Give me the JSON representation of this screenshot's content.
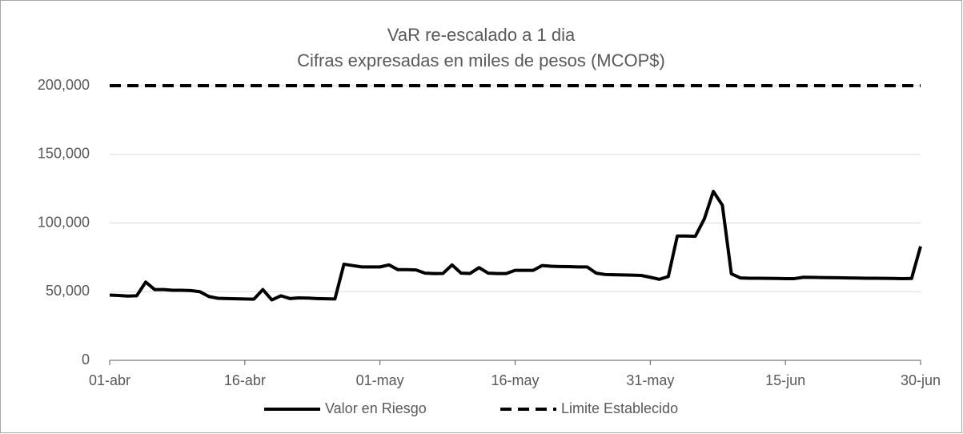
{
  "chart_data": {
    "type": "line",
    "title": "VaR re-escalado a 1 dia",
    "subtitle": "Cifras expresadas en miles de pesos (MCOP$)",
    "categories": [
      "01-abr",
      "02-abr",
      "03-abr",
      "04-abr",
      "05-abr",
      "06-abr",
      "07-abr",
      "08-abr",
      "09-abr",
      "10-abr",
      "11-abr",
      "12-abr",
      "13-abr",
      "14-abr",
      "15-abr",
      "16-abr",
      "17-abr",
      "18-abr",
      "19-abr",
      "20-abr",
      "21-abr",
      "22-abr",
      "23-abr",
      "24-abr",
      "25-abr",
      "26-abr",
      "27-abr",
      "28-abr",
      "29-abr",
      "30-abr",
      "01-may",
      "02-may",
      "03-may",
      "04-may",
      "05-may",
      "06-may",
      "07-may",
      "08-may",
      "09-may",
      "10-may",
      "11-may",
      "12-may",
      "13-may",
      "14-may",
      "15-may",
      "16-may",
      "17-may",
      "18-may",
      "19-may",
      "20-may",
      "21-may",
      "22-may",
      "23-may",
      "24-may",
      "25-may",
      "26-may",
      "27-may",
      "28-may",
      "29-may",
      "30-may",
      "31-may",
      "01-jun",
      "02-jun",
      "03-jun",
      "04-jun",
      "05-jun",
      "06-jun",
      "07-jun",
      "08-jun",
      "09-jun",
      "10-jun",
      "11-jun",
      "12-jun",
      "13-jun",
      "14-jun",
      "15-jun",
      "16-jun",
      "17-jun",
      "18-jun",
      "19-jun",
      "20-jun",
      "21-jun",
      "22-jun",
      "23-jun",
      "24-jun",
      "25-jun",
      "26-jun",
      "27-jun",
      "28-jun",
      "29-jun",
      "30-jun"
    ],
    "series": [
      {
        "name": "Valor en Riesgo",
        "color": "#000000",
        "dash": "solid",
        "values": [
          47500,
          47200,
          46800,
          47000,
          57000,
          51500,
          51500,
          51000,
          51000,
          50800,
          50000,
          46500,
          45200,
          45000,
          44800,
          44700,
          44500,
          51500,
          44000,
          47000,
          45000,
          45500,
          45300,
          45000,
          44800,
          44700,
          70000,
          69000,
          68000,
          68000,
          68000,
          69500,
          66000,
          66000,
          65800,
          63500,
          63200,
          63300,
          69500,
          63500,
          63300,
          67500,
          63500,
          63200,
          63200,
          65500,
          65500,
          65500,
          69000,
          68500,
          68300,
          68200,
          68000,
          68000,
          63500,
          62500,
          62300,
          62200,
          62000,
          61800,
          60500,
          59000,
          61000,
          90500,
          90500,
          90300,
          103000,
          123000,
          113000,
          63000,
          60000,
          59800,
          59800,
          59700,
          59600,
          59500,
          59500,
          60500,
          60400,
          60300,
          60200,
          60100,
          60000,
          59900,
          59800,
          59800,
          59700,
          59600,
          59500,
          59600,
          83000
        ]
      },
      {
        "name": "Limite Establecido",
        "color": "#000000",
        "dash": "dashed",
        "values": [
          200000,
          200000,
          200000,
          200000,
          200000,
          200000,
          200000,
          200000,
          200000,
          200000,
          200000,
          200000,
          200000,
          200000,
          200000,
          200000,
          200000,
          200000,
          200000,
          200000,
          200000,
          200000,
          200000,
          200000,
          200000,
          200000,
          200000,
          200000,
          200000,
          200000,
          200000,
          200000,
          200000,
          200000,
          200000,
          200000,
          200000,
          200000,
          200000,
          200000,
          200000,
          200000,
          200000,
          200000,
          200000,
          200000,
          200000,
          200000,
          200000,
          200000,
          200000,
          200000,
          200000,
          200000,
          200000,
          200000,
          200000,
          200000,
          200000,
          200000,
          200000,
          200000,
          200000,
          200000,
          200000,
          200000,
          200000,
          200000,
          200000,
          200000,
          200000,
          200000,
          200000,
          200000,
          200000,
          200000,
          200000,
          200000,
          200000,
          200000,
          200000,
          200000,
          200000,
          200000,
          200000,
          200000,
          200000,
          200000,
          200000,
          200000,
          200000
        ]
      }
    ],
    "xticks": [
      "01-abr",
      "16-abr",
      "01-may",
      "16-may",
      "31-may",
      "15-jun",
      "30-jun"
    ],
    "ylim": [
      0,
      200000
    ],
    "yticks": [
      0,
      {
        "value": 50000,
        "label": "50,000"
      },
      {
        "value": 100000,
        "label": "100,000"
      },
      {
        "value": 150000,
        "label": "150,000"
      },
      {
        "value": 200000,
        "label": "200,000"
      }
    ],
    "grid": true,
    "legend": "bottom"
  }
}
